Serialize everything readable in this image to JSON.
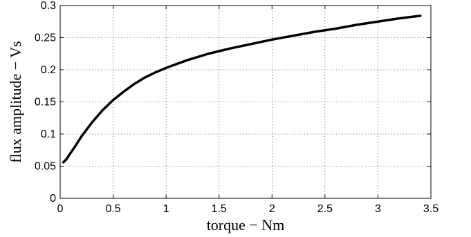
{
  "chart_data": {
    "type": "line",
    "xlabel": "torque − Nm",
    "ylabel": "flux amplitude − Vs",
    "xlim": [
      0,
      3.5
    ],
    "ylim": [
      0,
      0.3
    ],
    "xticks": [
      0,
      0.5,
      1,
      1.5,
      2,
      2.5,
      3,
      3.5
    ],
    "yticks": [
      0,
      0.05,
      0.1,
      0.15,
      0.2,
      0.25,
      0.3
    ],
    "xtick_labels": [
      "0",
      "0.5",
      "1",
      "1.5",
      "2",
      "2.5",
      "3",
      "3.5"
    ],
    "ytick_labels": [
      "0",
      "0.05",
      "0.1",
      "0.15",
      "0.2",
      "0.25",
      "0.3"
    ],
    "grid": true,
    "series": [
      {
        "color": "#000000",
        "x": [
          0.03,
          0.06,
          0.1,
          0.15,
          0.2,
          0.3,
          0.4,
          0.5,
          0.6,
          0.7,
          0.8,
          0.9,
          1.0,
          1.2,
          1.4,
          1.6,
          1.8,
          2.0,
          2.2,
          2.4,
          2.6,
          2.8,
          3.0,
          3.2,
          3.4
        ],
        "y": [
          0.056,
          0.061,
          0.071,
          0.083,
          0.096,
          0.118,
          0.137,
          0.153,
          0.166,
          0.178,
          0.188,
          0.196,
          0.203,
          0.215,
          0.225,
          0.233,
          0.24,
          0.247,
          0.253,
          0.259,
          0.264,
          0.27,
          0.275,
          0.28,
          0.284
        ]
      }
    ]
  }
}
